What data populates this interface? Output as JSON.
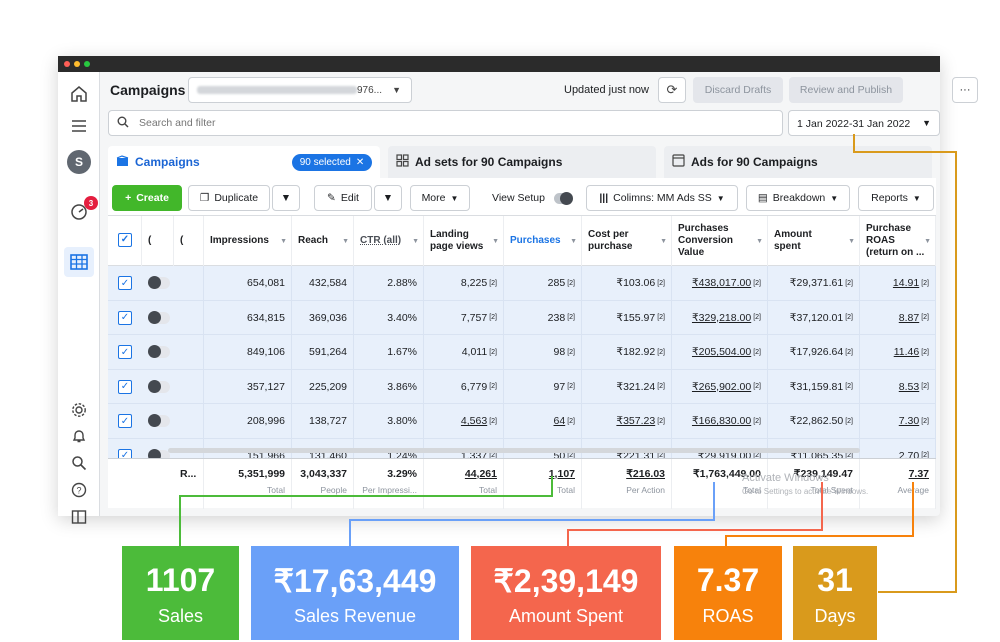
{
  "header": {
    "title": "Campaigns",
    "account_suffix": "976...",
    "updated_text": "Updated just now",
    "discard_label": "Discard Drafts",
    "review_label": "Review and Publish",
    "more_label": "···"
  },
  "search": {
    "placeholder": "Search and filter"
  },
  "date_range": "1 Jan 2022-31 Jan 2022",
  "tabs": {
    "campaigns": "Campaigns",
    "selected": "90 selected",
    "adsets": "Ad sets for 90 Campaigns",
    "ads": "Ads for 90 Campaigns"
  },
  "toolbar": {
    "create": "Create",
    "duplicate": "Duplicate",
    "edit": "Edit",
    "more": "More",
    "view_setup": "View Setup",
    "columns": "Colimns: MM Ads SS",
    "breakdown": "Breakdown",
    "reports": "Reports"
  },
  "sidebar": {
    "avatar": "S",
    "badge": "3"
  },
  "columns": {
    "impressions": "Impressions",
    "reach": "Reach",
    "ctr": "CTR (all)",
    "landing_1": "Landing",
    "landing_2": "page views",
    "purchases": "Purchases",
    "cpp_1": "Cost per",
    "cpp_2": "purchase",
    "pcv_1": "Purchases",
    "pcv_2": "Conversion",
    "pcv_3": "Value",
    "amount_1": "Amount",
    "amount_2": "spent",
    "roas_1": "Purchase",
    "roas_2": "ROAS",
    "roas_3": "(return on ..."
  },
  "rows": [
    {
      "impressions": "654,081",
      "reach": "432,584",
      "ctr": "2.88%",
      "landing": "8,225",
      "purchases": "285",
      "cpp": "₹103.06",
      "pcv": "₹438,017.00",
      "amount": "₹29,371.61",
      "roas": "14.91"
    },
    {
      "impressions": "634,815",
      "reach": "369,036",
      "ctr": "3.40%",
      "landing": "7,757",
      "purchases": "238",
      "cpp": "₹155.97",
      "pcv": "₹329,218.00",
      "amount": "₹37,120.01",
      "roas": "8.87"
    },
    {
      "impressions": "849,106",
      "reach": "591,264",
      "ctr": "1.67%",
      "landing": "4,011",
      "purchases": "98",
      "cpp": "₹182.92",
      "pcv": "₹205,504.00",
      "amount": "₹17,926.64",
      "roas": "11.46"
    },
    {
      "impressions": "357,127",
      "reach": "225,209",
      "ctr": "3.86%",
      "landing": "6,779",
      "purchases": "97",
      "cpp": "₹321.24",
      "pcv": "₹265,902.00",
      "amount": "₹31,159.81",
      "roas": "8.53"
    },
    {
      "impressions": "208,996",
      "reach": "138,727",
      "ctr": "3.80%",
      "landing": "4,563",
      "purchases": "64",
      "cpp": "₹357.23",
      "pcv": "₹166,830.00",
      "amount": "₹22,862.50",
      "roas": "7.30"
    },
    {
      "impressions": "151,966",
      "reach": "131,460",
      "ctr": "1.24%",
      "landing": "1,337",
      "purchases": "50",
      "cpp": "₹221.31",
      "pcv": "₹29,919.00",
      "amount": "₹11,065.35",
      "roas": "2.70"
    }
  ],
  "footnote_mark": "[2]",
  "totals": {
    "label": "R...",
    "impressions": "5,351,999",
    "impressions_lab": "Total",
    "reach": "3,043,337",
    "reach_lab": "People",
    "ctr": "3.29%",
    "ctr_lab": "Per Impressi...",
    "landing": "44,261",
    "landing_lab": "Total",
    "purchases": "1,107",
    "purchases_lab": "Total",
    "cpp": "₹216.03",
    "cpp_lab": "Per Action",
    "pcv": "₹1,763,449.00",
    "pcv_lab": "Total",
    "amount": "₹239,149.47",
    "amount_lab": "Total Spent",
    "roas": "7.37",
    "roas_lab": "Average"
  },
  "windows_watermark": {
    "line1": "Activate Windows",
    "line2": "Go to Settings to activate Windows."
  },
  "cards": [
    {
      "value": "1107",
      "label": "Sales",
      "color": "#4cbb3a"
    },
    {
      "value": "₹17,63,449",
      "label": "Sales Revenue",
      "color": "#6aa0f8"
    },
    {
      "value": "₹2,39,149",
      "label": "Amount Spent",
      "color": "#f4664d"
    },
    {
      "value": "7.37",
      "label": "ROAS",
      "color": "#f7820c"
    },
    {
      "value": "31",
      "label": "Days",
      "color": "#d99a1c"
    }
  ]
}
